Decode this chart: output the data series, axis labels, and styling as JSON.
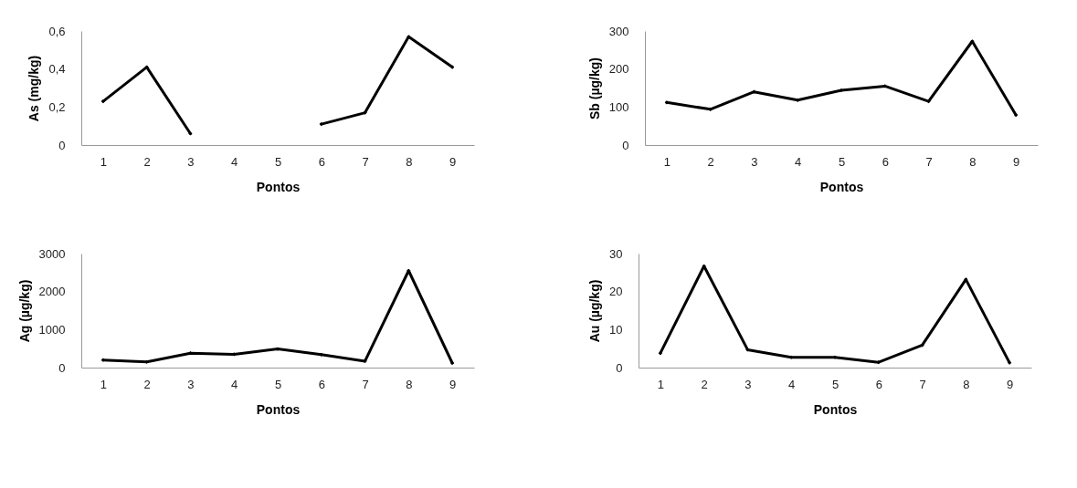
{
  "chart_data": [
    {
      "type": "line",
      "xlabel": "Pontos",
      "ylabel": "As (mg/kg)",
      "categories": [
        "1",
        "2",
        "3",
        "4",
        "5",
        "6",
        "7",
        "8",
        "9"
      ],
      "series": [
        {
          "color": "#000000",
          "values": [
            0.23,
            0.41,
            0.06,
            null,
            null,
            0.11,
            0.17,
            0.57,
            0.41
          ]
        }
      ],
      "ylim": [
        0,
        0.6
      ],
      "yticks": [
        0,
        {
          "value": 0.2,
          "label": "0,2"
        },
        {
          "value": 0.4,
          "label": "0,4"
        },
        {
          "value": 0.6,
          "label": "0,6"
        }
      ],
      "grid": false,
      "legend": false,
      "marker": "diamond",
      "line_style": "solid"
    },
    {
      "type": "line",
      "xlabel": "Pontos",
      "ylabel": "Sb (µg/kg)",
      "categories": [
        "1",
        "2",
        "3",
        "4",
        "5",
        "6",
        "7",
        "8",
        "9"
      ],
      "series": [
        {
          "color": "#000000",
          "values": [
            112,
            94,
            140,
            118,
            144,
            155,
            115,
            273,
            79
          ]
        }
      ],
      "ylim": [
        0,
        300
      ],
      "yticks": [
        0,
        100,
        200,
        300
      ],
      "grid": false,
      "legend": false,
      "marker": "diamond",
      "line_style": "solid"
    },
    {
      "type": "line",
      "xlabel": "Pontos",
      "ylabel": "Ag (µg/kg)",
      "categories": [
        "1",
        "2",
        "3",
        "4",
        "5",
        "6",
        "7",
        "8",
        "9"
      ],
      "series": [
        {
          "color": "#000000",
          "values": [
            200,
            150,
            380,
            350,
            490,
            340,
            170,
            2550,
            120
          ]
        }
      ],
      "ylim": [
        0,
        3000
      ],
      "yticks": [
        0,
        1000,
        2000,
        3000
      ],
      "grid": false,
      "legend": false,
      "marker": "diamond",
      "line_style": "solid"
    },
    {
      "type": "line",
      "xlabel": "Pontos",
      "ylabel": "Au (µg/kg)",
      "categories": [
        "1",
        "2",
        "3",
        "4",
        "5",
        "6",
        "7",
        "8",
        "9"
      ],
      "series": [
        {
          "color": "#000000",
          "values": [
            3.8,
            26.7,
            4.7,
            2.7,
            2.7,
            1.4,
            5.9,
            23.2,
            1.3
          ]
        }
      ],
      "ylim": [
        0,
        30
      ],
      "yticks": [
        0,
        10,
        20,
        30
      ],
      "grid": false,
      "legend": false,
      "marker": "diamond",
      "line_style": "solid"
    }
  ]
}
